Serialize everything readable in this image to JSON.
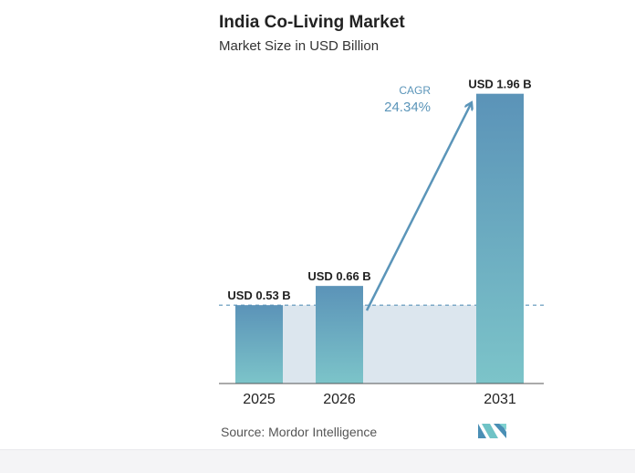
{
  "chart_data": {
    "type": "bar",
    "title": "India Co-Living Market",
    "subtitle": "Market Size in USD Billion",
    "categories": [
      "2025",
      "2026",
      "2031"
    ],
    "values": [
      0.53,
      0.66,
      1.96
    ],
    "value_labels": [
      "USD 0.53 B",
      "USD 0.66 B",
      "USD 1.96 B"
    ],
    "ylim": [
      0,
      2.1
    ],
    "grid": false,
    "annotation": {
      "label": "CAGR",
      "value": "24.34%"
    }
  },
  "source": "Source: Mordor Intelligence",
  "colors": {
    "bar_top": "#5b93b8",
    "bar_bottom": "#7cc4c9",
    "shaded_area": "#dce6ee",
    "arrow": "#5b95b9",
    "cagr_text": "#5b95b9",
    "reference_line": "#5b93b8"
  },
  "logo_icon": "mordor-intelligence-logo-icon"
}
